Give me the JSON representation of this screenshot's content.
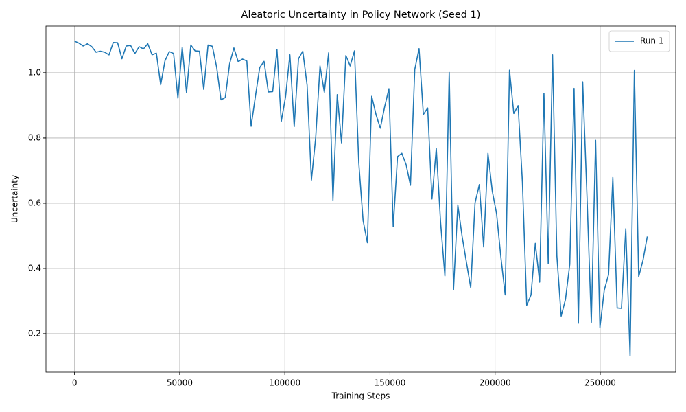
{
  "chart_data": {
    "type": "line",
    "title": "Aleatoric Uncertainty in Policy Network (Seed 1)",
    "xlabel": "Training Steps",
    "ylabel": "Uncertainty",
    "x": [
      0,
      2048,
      4096,
      6144,
      8192,
      10240,
      12288,
      14336,
      16384,
      18432,
      20480,
      22528,
      24576,
      26624,
      28672,
      30720,
      32768,
      34816,
      36864,
      38912,
      40960,
      43008,
      45056,
      47104,
      49152,
      51200,
      53248,
      55296,
      57344,
      59392,
      61440,
      63488,
      65536,
      67584,
      69632,
      71680,
      73728,
      75776,
      77824,
      79872,
      81920,
      83968,
      86016,
      88064,
      90112,
      92160,
      94208,
      96256,
      98304,
      100352,
      102400,
      104448,
      106496,
      108544,
      110592,
      112640,
      114688,
      116736,
      118784,
      120832,
      122880,
      124928,
      126976,
      129024,
      131072,
      133120,
      135168,
      137216,
      139264,
      141312,
      143360,
      145408,
      147456,
      149504,
      151552,
      153600,
      155648,
      157696,
      159744,
      161792,
      163840,
      165888,
      167936,
      169984,
      172032,
      174080,
      176128,
      178176,
      180224,
      182272,
      184320,
      186368,
      188416,
      190464,
      192512,
      194560,
      196608,
      198656,
      200704,
      202752,
      204800,
      206848,
      208896,
      210944,
      212992,
      215040,
      217088,
      219136,
      221184,
      223232,
      225280,
      227328,
      229376,
      231424,
      233472,
      235520,
      237568,
      239616,
      241664,
      243712,
      245760,
      247808,
      249856,
      251904,
      253952,
      256000,
      258048,
      260096,
      262144,
      264192,
      266240,
      268288,
      270336,
      272384
    ],
    "series": [
      {
        "name": "Run 1",
        "color": "#1f77b4",
        "values": [
          1.097,
          1.091,
          1.082,
          1.089,
          1.08,
          1.063,
          1.066,
          1.063,
          1.055,
          1.093,
          1.092,
          1.043,
          1.082,
          1.084,
          1.059,
          1.08,
          1.073,
          1.089,
          1.055,
          1.06,
          0.963,
          1.037,
          1.065,
          1.059,
          0.922,
          1.078,
          0.939,
          1.085,
          1.067,
          1.066,
          0.949,
          1.085,
          1.081,
          1.017,
          0.917,
          0.924,
          1.027,
          1.076,
          1.034,
          1.042,
          1.036,
          0.836,
          0.928,
          1.016,
          1.035,
          0.941,
          0.942,
          1.071,
          0.851,
          0.927,
          1.055,
          0.835,
          1.043,
          1.066,
          0.962,
          0.671,
          0.802,
          1.021,
          0.94,
          1.061,
          0.609,
          0.933,
          0.785,
          1.053,
          1.021,
          1.067,
          0.724,
          0.547,
          0.479,
          0.928,
          0.872,
          0.83,
          0.895,
          0.951,
          0.528,
          0.743,
          0.753,
          0.718,
          0.655,
          1.01,
          1.074,
          0.872,
          0.892,
          0.613,
          0.768,
          0.541,
          0.377,
          1.001,
          0.335,
          0.595,
          0.498,
          0.419,
          0.341,
          0.601,
          0.657,
          0.466,
          0.753,
          0.637,
          0.568,
          0.435,
          0.319,
          1.008,
          0.875,
          0.899,
          0.665,
          0.287,
          0.319,
          0.477,
          0.358,
          0.937,
          0.415,
          1.055,
          0.439,
          0.254,
          0.305,
          0.413,
          0.952,
          0.232,
          0.972,
          0.62,
          0.235,
          0.793,
          0.218,
          0.333,
          0.381,
          0.679,
          0.279,
          0.278,
          0.522,
          0.132,
          1.007,
          0.375,
          0.425,
          0.498
        ]
      }
    ],
    "xlim": [
      -13600,
      285900
    ],
    "xticks": [
      0,
      50000,
      100000,
      150000,
      200000,
      250000
    ],
    "ylim": [
      0.082,
      1.143
    ],
    "yticks": [
      0.2,
      0.4,
      0.6,
      0.8,
      {
        "value": 1,
        "label": "1.0"
      }
    ],
    "grid": true,
    "legend": "upper right"
  }
}
